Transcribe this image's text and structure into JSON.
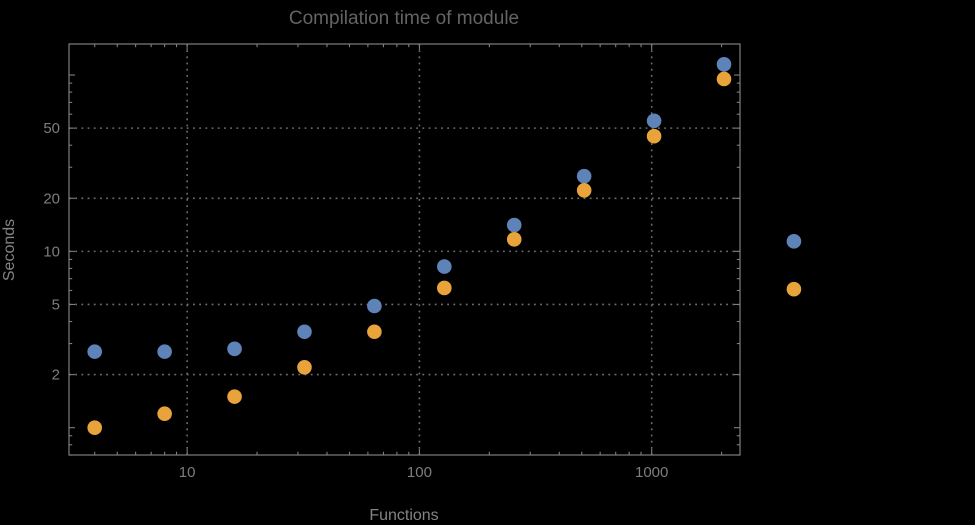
{
  "colors": {
    "background": "#000000",
    "frame": "#7f7f7f",
    "gridline": "#6e6e6e",
    "tick": "#7f7f7f",
    "tick_label_text": "#7d7d7d",
    "axis_label_text": "#848484",
    "title_text": "#646464",
    "series_blue": "#5e83b9",
    "series_orange": "#e8a33b"
  },
  "chart_data": {
    "type": "scatter",
    "title": "Compilation time of module",
    "xlabel": "Functions",
    "ylabel": "Seconds",
    "x_scale": "log",
    "y_scale": "log",
    "grid": "dotted lines at labeled major ticks only",
    "legend_position": "none",
    "x": [
      4,
      8,
      16,
      32,
      64,
      128,
      256,
      512,
      1024,
      2048,
      4096
    ],
    "series": [
      {
        "name": "series-1-blue",
        "color": "#5e83b9",
        "values": [
          2.7,
          2.7,
          2.8,
          3.5,
          4.9,
          8.2,
          14.1,
          26.7,
          55,
          115,
          11.4
        ]
      },
      {
        "name": "series-2-orange",
        "color": "#e8a33b",
        "values": [
          1.0,
          1.2,
          1.5,
          2.2,
          3.5,
          6.2,
          11.7,
          22.2,
          45,
          95,
          6.1
        ]
      }
    ],
    "x_axis": {
      "range": [
        3.1,
        2400
      ],
      "major_ticks": [
        10,
        100,
        1000
      ],
      "tick_labels": [
        "10",
        "100",
        "1000"
      ],
      "unlabeled_major_ticks": []
    },
    "y_axis": {
      "range": [
        0.7,
        150
      ],
      "major_ticks": [
        2,
        5,
        10,
        20,
        50
      ],
      "tick_labels": [
        "2",
        "5",
        "10",
        "20",
        "50"
      ],
      "unlabeled_major_ticks": [
        1,
        100
      ]
    },
    "gridlines": {
      "x": [
        10,
        100,
        1000
      ],
      "y": [
        2,
        5,
        10,
        20,
        50
      ]
    },
    "note": "last data points (x=4096) are drawn outside the right edge of the plot frame"
  }
}
